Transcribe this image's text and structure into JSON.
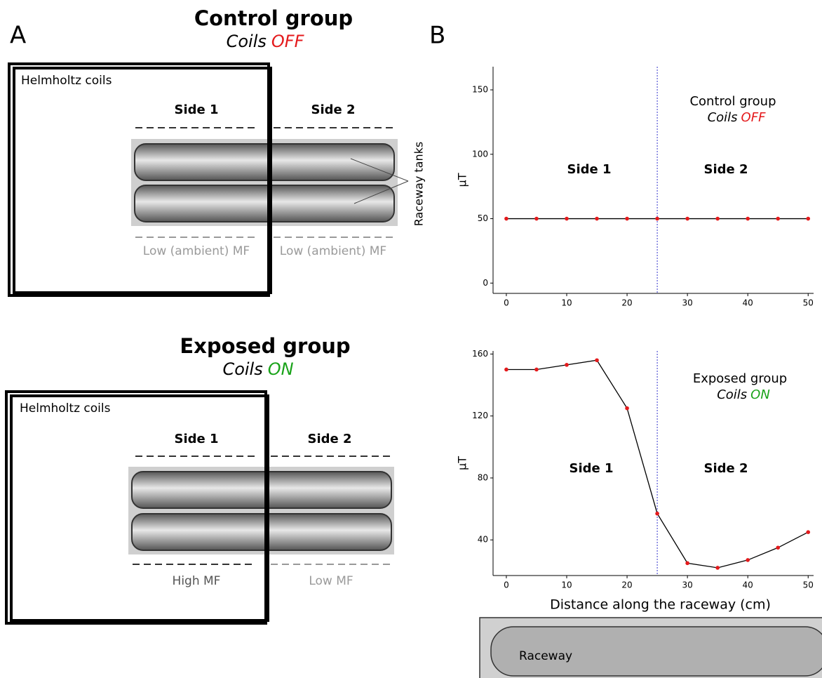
{
  "panel_labels": [
    "A",
    "B"
  ],
  "diagrams": [
    {
      "title": "Control group",
      "coils": "Coils",
      "state": "OFF",
      "state_color": "#e41a1c",
      "coil_label": "Helmholtz coils",
      "sides": [
        "Side 1",
        "Side 2"
      ],
      "field": [
        "Low (ambient) MF",
        "Low (ambient) MF"
      ],
      "field_colors": [
        "#9a9a9a",
        "#9a9a9a"
      ],
      "tanks_label": "Raceway tanks"
    },
    {
      "title": "Exposed group",
      "coils": "Coils",
      "state": "ON",
      "state_color": "#1aa31a",
      "coil_label": "Helmholtz coils",
      "sides": [
        "Side 1",
        "Side 2"
      ],
      "field": [
        "High MF",
        "Low MF"
      ],
      "field_colors": [
        "#555555",
        "#9a9a9a"
      ]
    }
  ],
  "chart_data": [
    {
      "type": "line",
      "x": [
        0,
        5,
        10,
        15,
        20,
        25,
        30,
        35,
        40,
        45,
        50
      ],
      "values": [
        50,
        50,
        50,
        50,
        50,
        50,
        50,
        50,
        50,
        50,
        50
      ],
      "color": "#000000",
      "marker_color": "#e41a1c",
      "xlim": [
        -2.2,
        50.9
      ],
      "ylim": [
        -8,
        168
      ],
      "xticks": [
        0,
        10,
        20,
        30,
        40,
        50
      ],
      "yticks": [
        0,
        50,
        100,
        150
      ],
      "ylabel": "μT",
      "divider": 25,
      "divider_color": "#3333cc",
      "annotation": "Control group",
      "annotation_coils": "Coils",
      "annotation_state": "OFF",
      "state_color": "#e41a1c",
      "side_labels": [
        "Side 1",
        "Side 2"
      ]
    },
    {
      "type": "line",
      "x": [
        0,
        5,
        10,
        15,
        20,
        25,
        30,
        35,
        40,
        45,
        50
      ],
      "values": [
        150,
        150,
        153,
        156,
        125,
        57,
        25,
        22,
        27,
        35,
        45
      ],
      "color": "#000000",
      "marker_color": "#e41a1c",
      "xlim": [
        -2.2,
        50.9
      ],
      "ylim": [
        17,
        162
      ],
      "xticks": [
        0,
        10,
        20,
        30,
        40,
        50
      ],
      "yticks": [
        40,
        80,
        120,
        160
      ],
      "ylabel": "μT",
      "xlabel": "Distance along the raceway (cm)",
      "divider": 25,
      "divider_color": "#3333cc",
      "annotation": "Exposed group",
      "annotation_coils": "Coils",
      "annotation_state": "ON",
      "state_color": "#1aa31a",
      "side_labels": [
        "Side 1",
        "Side 2"
      ]
    }
  ],
  "raceway_label": "Raceway"
}
